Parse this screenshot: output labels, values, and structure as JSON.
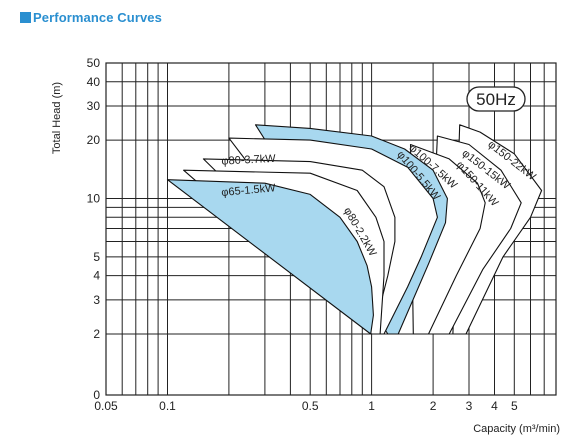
{
  "header": {
    "title": "Performance Curves"
  },
  "chart_data": {
    "type": "area",
    "title": "Performance Curves",
    "badge": "50Hz",
    "xlabel": "Capacity (m³/min)",
    "ylabel": "Total Head (m)",
    "x_scale": "log",
    "y_scale": "log",
    "xlim": [
      0.05,
      8
    ],
    "ylim": [
      2,
      50
    ],
    "x_ticks": [
      {
        "v": 0.05,
        "label": "0.05"
      },
      {
        "v": 0.1,
        "label": "0.1"
      },
      {
        "v": 0.5,
        "label": "0.5"
      },
      {
        "v": 1,
        "label": "1"
      },
      {
        "v": 2,
        "label": "2"
      },
      {
        "v": 3,
        "label": "3"
      },
      {
        "v": 4,
        "label": "4"
      },
      {
        "v": 5,
        "label": "5"
      }
    ],
    "y_ticks": [
      {
        "v": 2,
        "label": "2"
      },
      {
        "v": 3,
        "label": "3"
      },
      {
        "v": 4,
        "label": "4"
      },
      {
        "v": 5,
        "label": "5"
      },
      {
        "v": 10,
        "label": "10"
      },
      {
        "v": 20,
        "label": "20"
      },
      {
        "v": 30,
        "label": "30"
      },
      {
        "v": 40,
        "label": "40"
      },
      {
        "v": 50,
        "label": "50"
      }
    ],
    "y_zero_label": "0",
    "x_grid": [
      0.06,
      0.07,
      0.08,
      0.09,
      0.1,
      0.2,
      0.3,
      0.4,
      0.5,
      0.6,
      0.7,
      0.8,
      0.9,
      1,
      2,
      3,
      4,
      5,
      6,
      7
    ],
    "y_grid": [
      2,
      3,
      4,
      5,
      6,
      7,
      8,
      9,
      10,
      20,
      30,
      40,
      50
    ],
    "grid": true,
    "series": [
      {
        "name": "φ150-22kW",
        "fill": "white",
        "order": 1,
        "points": [
          [
            2.7,
            24
          ],
          [
            3.4,
            22
          ],
          [
            5.0,
            17
          ],
          [
            6.8,
            11
          ],
          [
            6.0,
            8
          ],
          [
            4.4,
            5
          ],
          [
            2.9,
            2
          ],
          [
            2.5,
            2
          ]
        ],
        "label_at": [
          4.75,
          15.2
        ],
        "label_rot": 38
      },
      {
        "name": "φ150-15kW",
        "fill": "white",
        "order": 2,
        "points": [
          [
            2.1,
            21
          ],
          [
            3.0,
            19
          ],
          [
            4.3,
            14
          ],
          [
            5.4,
            9.5
          ],
          [
            4.8,
            7
          ],
          [
            3.5,
            4.3
          ],
          [
            2.4,
            2
          ],
          [
            1.9,
            2
          ]
        ],
        "label_at": [
          3.55,
          13.7
        ],
        "label_rot": 38
      },
      {
        "name": "φ150-11kW",
        "fill": "white",
        "order": 3,
        "points": [
          [
            1.55,
            19
          ],
          [
            2.4,
            16
          ],
          [
            3.3,
            12
          ],
          [
            3.6,
            9.5
          ],
          [
            3.4,
            7
          ],
          [
            2.6,
            4
          ],
          [
            1.9,
            2
          ],
          [
            1.6,
            2
          ]
        ],
        "label_at": [
          3.2,
          11.6
        ],
        "label_rot": 48
      },
      {
        "name": "φ100-7.5kW",
        "fill": "blue",
        "order": 4,
        "points": [
          [
            0.27,
            24
          ],
          [
            0.5,
            23
          ],
          [
            1.0,
            21
          ],
          [
            1.45,
            18
          ],
          [
            2.0,
            14
          ],
          [
            2.35,
            10
          ],
          [
            2.3,
            7.5
          ],
          [
            1.9,
            4.6
          ],
          [
            1.35,
            2
          ],
          [
            1.2,
            2
          ]
        ],
        "label_at": [
          1.95,
          14.2
        ],
        "label_rot": 42
      },
      {
        "name": "φ100-5.5kW",
        "fill": "white",
        "order": 5,
        "points": [
          [
            0.2,
            20.5
          ],
          [
            0.5,
            20
          ],
          [
            1.0,
            18
          ],
          [
            1.5,
            14.5
          ],
          [
            2.0,
            10
          ],
          [
            2.1,
            8
          ],
          [
            1.75,
            5
          ],
          [
            1.5,
            3.5
          ],
          [
            1.15,
            2
          ],
          [
            1.08,
            2
          ]
        ],
        "label_at": [
          1.65,
          12.8
        ],
        "label_rot": 50
      },
      {
        "name": "φ80-3.7kW",
        "fill": "white",
        "order": 6,
        "points": [
          [
            0.15,
            16
          ],
          [
            0.5,
            15.5
          ],
          [
            0.9,
            14
          ],
          [
            1.15,
            11.5
          ],
          [
            1.3,
            8
          ],
          [
            1.3,
            6
          ],
          [
            1.2,
            4
          ],
          [
            1.05,
            2.3
          ],
          [
            0.98,
            2.3
          ]
        ],
        "label_at": [
          0.25,
          15.2
        ],
        "label_rot": -3
      },
      {
        "name": "φ80-2.2kW",
        "fill": "white",
        "order": 7,
        "points": [
          [
            0.12,
            14
          ],
          [
            0.5,
            13.5
          ],
          [
            0.85,
            11
          ],
          [
            1.05,
            8
          ],
          [
            1.15,
            6
          ],
          [
            1.15,
            4
          ],
          [
            1.1,
            2
          ],
          [
            1.0,
            2
          ]
        ],
        "label_at": [
          0.85,
          6.6
        ],
        "label_rot": 60
      },
      {
        "name": "φ65-1.5kW",
        "fill": "blue",
        "order": 8,
        "points": [
          [
            0.1,
            12.5
          ],
          [
            0.3,
            12
          ],
          [
            0.5,
            10.5
          ],
          [
            0.7,
            8
          ],
          [
            0.85,
            6
          ],
          [
            0.95,
            4.5
          ],
          [
            1.0,
            3.5
          ],
          [
            1.02,
            2.5
          ],
          [
            0.99,
            2
          ]
        ],
        "label_at": [
          0.25,
          10.6
        ],
        "label_rot": -5
      }
    ]
  }
}
